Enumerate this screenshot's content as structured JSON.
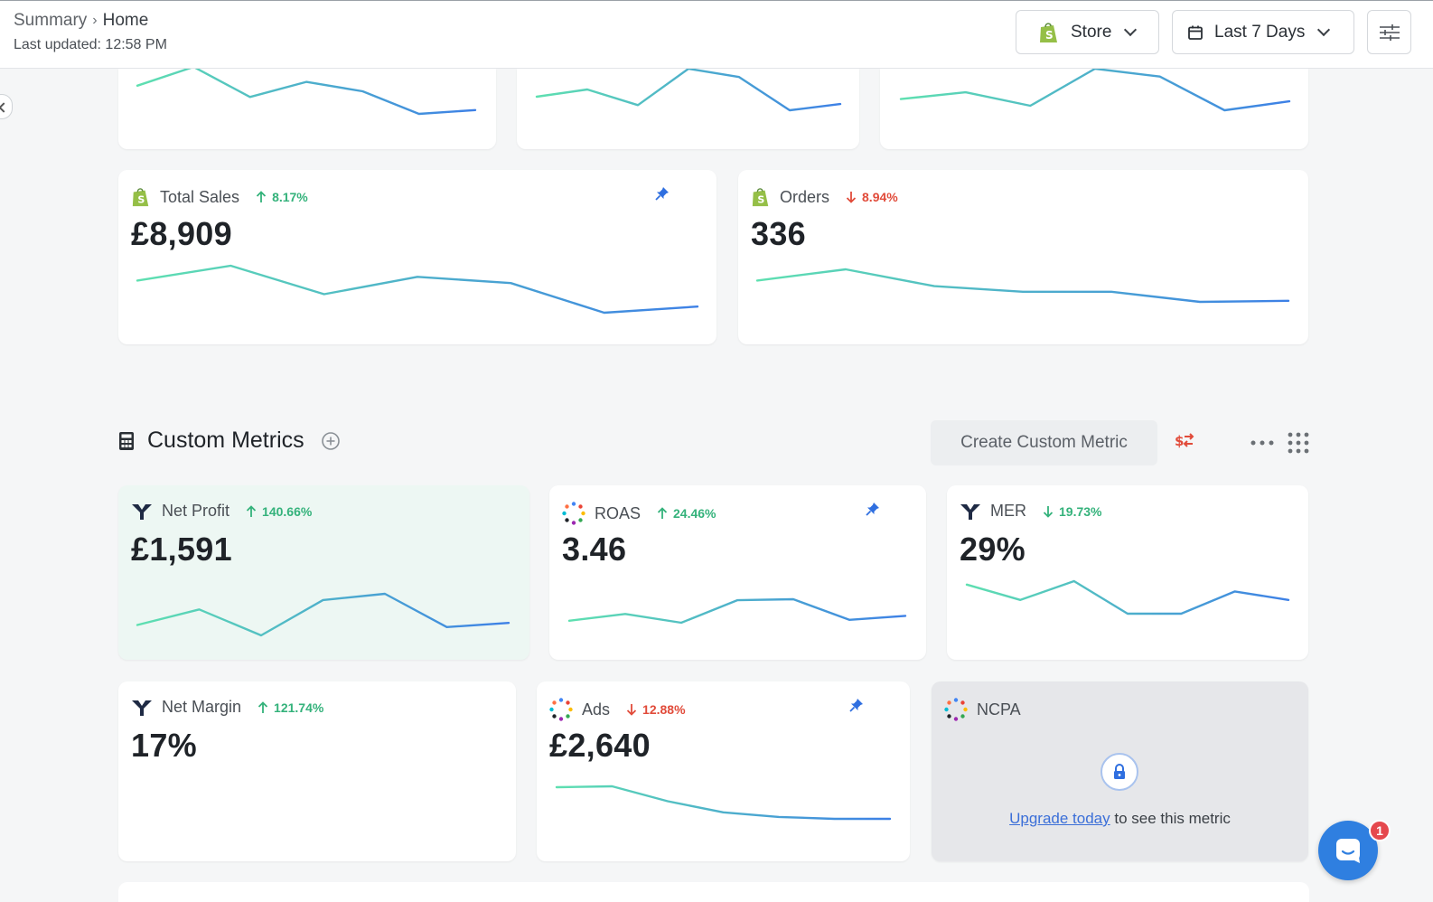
{
  "header": {
    "breadcrumb": [
      "Summary",
      "Home"
    ],
    "last_updated": "Last updated: 12:58 PM",
    "store_label": "Store",
    "range_label": "Last 7 Days"
  },
  "colors": {
    "spark_start": "#5ee0b0",
    "spark_end": "#3d80e6",
    "up": "#34b27b",
    "down": "#e14b3a",
    "pin": "#2f6fe0",
    "accent": "#2f7fe0"
  },
  "top_cards": [
    {
      "name": "Total Sales",
      "change": "8.17%",
      "direction": "up",
      "value": "£8,909",
      "source_icon": "shopify-icon",
      "pinned": true,
      "trend": [
        4.6,
        5.8,
        3.5,
        4.9,
        4.4,
        2.0,
        2.5
      ]
    },
    {
      "name": "Orders",
      "change": "8.94%",
      "direction": "down",
      "value": "336",
      "source_icon": "shopify-icon",
      "pinned": false,
      "trend": [
        5.5,
        6.5,
        5.0,
        4.5,
        4.5,
        3.6,
        3.7
      ]
    }
  ],
  "partial_cards": [
    {
      "trend": [
        5.0,
        7.0,
        3.8,
        5.4,
        4.4,
        2.0,
        2.4
      ]
    },
    {
      "trend": [
        4.3,
        5.0,
        3.5,
        7.0,
        6.2,
        3.0,
        3.6
      ]
    },
    {
      "trend": [
        4.2,
        4.8,
        3.6,
        6.9,
        6.2,
        3.2,
        4.0
      ]
    }
  ],
  "custom_metrics": {
    "title": "Custom Metrics",
    "create_label": "Create Custom Metric",
    "cards": [
      {
        "name": "Net Profit",
        "change": "140.66%",
        "direction": "up",
        "value": "£1,591",
        "source_icon": "triple-whale-icon",
        "pinned": false,
        "highlight": true,
        "trend": [
          2.8,
          4.3,
          1.8,
          5.2,
          5.8,
          2.6,
          3.0
        ]
      },
      {
        "name": "ROAS",
        "change": "24.46%",
        "direction": "up",
        "value": "3.46",
        "source_icon": "multi-source-icon",
        "pinned": true,
        "trend": [
          3.4,
          4.1,
          3.2,
          5.5,
          5.6,
          3.5,
          3.9
        ]
      },
      {
        "name": "MER",
        "change": "19.73%",
        "direction": "down-green",
        "value": "29%",
        "source_icon": "triple-whale-icon",
        "pinned": false,
        "trend": [
          6.2,
          5.3,
          6.4,
          4.5,
          4.5,
          5.8,
          5.3
        ]
      },
      {
        "name": "Net Margin",
        "change": "121.74%",
        "direction": "up",
        "value": "17%",
        "source_icon": "triple-whale-icon",
        "pinned": false,
        "trend": []
      },
      {
        "name": "Ads",
        "change": "12.88%",
        "direction": "down",
        "value": "£2,640",
        "source_icon": "multi-source-icon",
        "pinned": true,
        "trend": [
          6.5,
          6.6,
          5.0,
          3.8,
          3.3,
          3.1,
          3.1
        ]
      }
    ],
    "locked_card": {
      "name": "NCPA",
      "link_text": "Upgrade today",
      "message": "to see this metric"
    }
  },
  "chat": {
    "badge": "1"
  }
}
